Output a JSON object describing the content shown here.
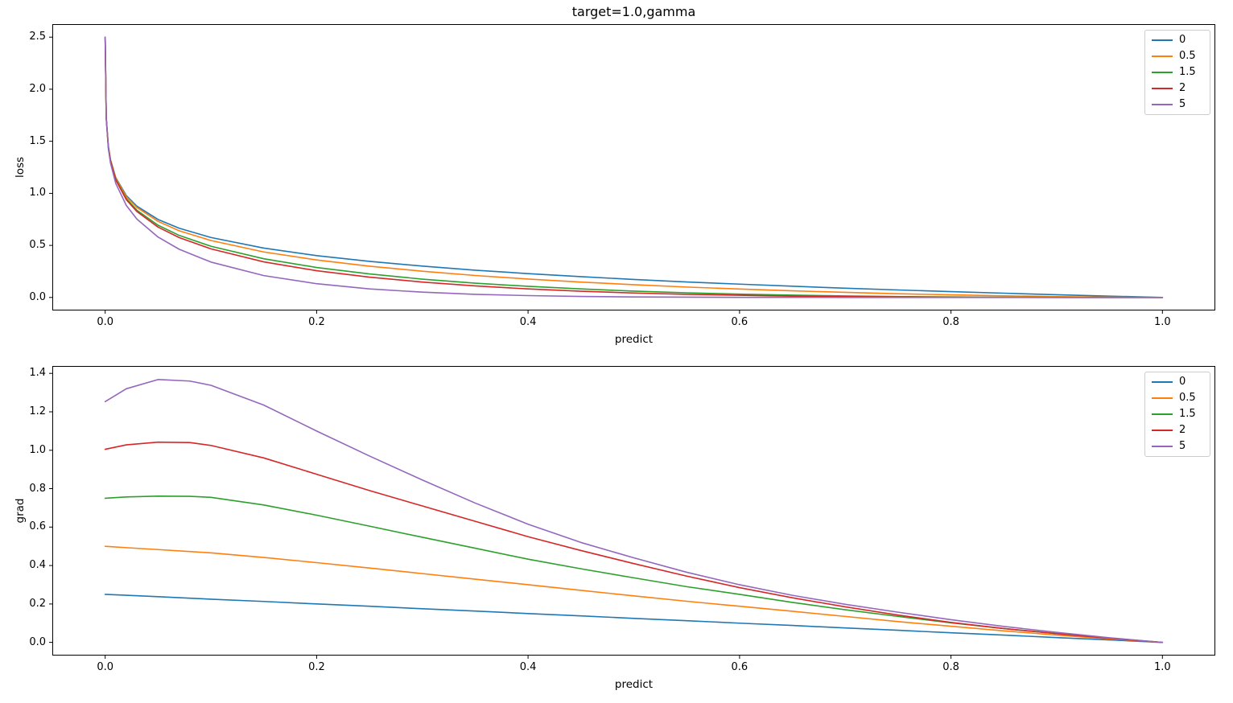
{
  "figure": {
    "title": "target=1.0,gamma",
    "background": "#ffffff"
  },
  "chart_data": [
    {
      "type": "line",
      "title": "target=1.0,gamma",
      "xlabel": "predict",
      "ylabel": "loss",
      "xlim": [
        -0.05,
        1.05
      ],
      "ylim": [
        -0.125,
        2.625
      ],
      "xticks": [
        0,
        0.2,
        0.4,
        0.6,
        0.8,
        1.0
      ],
      "xtick_labels": [
        "0.0",
        "0.2",
        "0.4",
        "0.6",
        "0.8",
        "1.0"
      ],
      "yticks": [
        0,
        0.5,
        1.0,
        1.5,
        2.0,
        2.5
      ],
      "ytick_labels": [
        "0.0",
        "0.5",
        "1.0",
        "1.5",
        "2.0",
        "2.5"
      ],
      "grid": false,
      "legend": {
        "position": "upper right",
        "labels": [
          "0",
          "0.5",
          "1.5",
          "2",
          "5"
        ]
      },
      "x": [
        0,
        0.001,
        0.003,
        0.005,
        0.01,
        0.02,
        0.03,
        0.05,
        0.07,
        0.1,
        0.15,
        0.2,
        0.25,
        0.3,
        0.35,
        0.4,
        0.45,
        0.5,
        0.55,
        0.6,
        0.65,
        0.7,
        0.75,
        0.8,
        0.85,
        0.9,
        0.95,
        1.0
      ],
      "series": [
        {
          "name": "0",
          "color": "#1f77b4",
          "y": [
            2.5,
            1.727,
            1.452,
            1.325,
            1.151,
            0.978,
            0.877,
            0.749,
            0.665,
            0.576,
            0.474,
            0.402,
            0.347,
            0.301,
            0.262,
            0.229,
            0.2,
            0.173,
            0.149,
            0.128,
            0.108,
            0.089,
            0.072,
            0.056,
            0.041,
            0.026,
            0.013,
            0
          ]
        },
        {
          "name": "0.5",
          "color": "#ff7f0e",
          "y": [
            2.5,
            1.726,
            1.45,
            1.322,
            1.145,
            0.968,
            0.864,
            0.731,
            0.641,
            0.547,
            0.437,
            0.36,
            0.3,
            0.252,
            0.211,
            0.177,
            0.148,
            0.123,
            0.1,
            0.081,
            0.064,
            0.049,
            0.036,
            0.025,
            0.016,
            0.008,
            0.003,
            0
          ]
        },
        {
          "name": "1.5",
          "color": "#2ca02c",
          "y": [
            2.5,
            1.724,
            1.445,
            1.315,
            1.134,
            0.949,
            0.838,
            0.694,
            0.596,
            0.492,
            0.372,
            0.288,
            0.226,
            0.176,
            0.137,
            0.107,
            0.082,
            0.061,
            0.045,
            0.032,
            0.022,
            0.015,
            0.009,
            0.005,
            0.002,
            0.001,
            0,
            0
          ]
        },
        {
          "name": "2",
          "color": "#d62728",
          "y": [
            2.5,
            1.724,
            1.443,
            1.312,
            1.128,
            0.939,
            0.825,
            0.676,
            0.575,
            0.467,
            0.342,
            0.257,
            0.195,
            0.148,
            0.111,
            0.082,
            0.06,
            0.043,
            0.03,
            0.021,
            0.013,
            0.008,
            0.005,
            0.002,
            0.001,
            0,
            0,
            0
          ]
        },
        {
          "name": "5",
          "color": "#9467bd",
          "y": [
            2.5,
            1.718,
            1.43,
            1.292,
            1.095,
            0.884,
            0.753,
            0.58,
            0.463,
            0.34,
            0.21,
            0.132,
            0.082,
            0.051,
            0.03,
            0.018,
            0.01,
            0.005,
            0.003,
            0.001,
            0.001,
            0,
            0,
            0,
            0,
            0,
            0,
            0
          ]
        }
      ]
    },
    {
      "type": "line",
      "title": "",
      "xlabel": "predict",
      "ylabel": "grad",
      "xlim": [
        -0.05,
        1.05
      ],
      "ylim": [
        -0.0685,
        1.4385
      ],
      "xticks": [
        0,
        0.2,
        0.4,
        0.6,
        0.8,
        1.0
      ],
      "xtick_labels": [
        "0.0",
        "0.2",
        "0.4",
        "0.6",
        "0.8",
        "1.0"
      ],
      "yticks": [
        0,
        0.2,
        0.4,
        0.6,
        0.8,
        1.0,
        1.2,
        1.4
      ],
      "ytick_labels": [
        "0.0",
        "0.2",
        "0.4",
        "0.6",
        "0.8",
        "1.0",
        "1.2",
        "1.4"
      ],
      "grid": false,
      "legend": {
        "position": "upper right",
        "labels": [
          "0",
          "0.5",
          "1.5",
          "2",
          "5"
        ]
      },
      "x": [
        0,
        0.02,
        0.05,
        0.08,
        0.1,
        0.15,
        0.2,
        0.25,
        0.3,
        0.35,
        0.4,
        0.45,
        0.5,
        0.55,
        0.6,
        0.65,
        0.7,
        0.75,
        0.8,
        0.85,
        0.9,
        0.95,
        1.0
      ],
      "series": [
        {
          "name": "0",
          "color": "#1f77b4",
          "y": [
            0.25,
            0.245,
            0.238,
            0.23,
            0.225,
            0.213,
            0.2,
            0.188,
            0.175,
            0.163,
            0.15,
            0.138,
            0.125,
            0.113,
            0.1,
            0.088,
            0.075,
            0.063,
            0.05,
            0.038,
            0.025,
            0.013,
            0
          ]
        },
        {
          "name": "0.5",
          "color": "#ff7f0e",
          "y": [
            0.5,
            0.493,
            0.483,
            0.473,
            0.466,
            0.442,
            0.415,
            0.387,
            0.358,
            0.329,
            0.3,
            0.271,
            0.242,
            0.214,
            0.188,
            0.162,
            0.135,
            0.108,
            0.084,
            0.06,
            0.038,
            0.018,
            0
          ]
        },
        {
          "name": "1.5",
          "color": "#2ca02c",
          "y": [
            0.75,
            0.757,
            0.761,
            0.76,
            0.755,
            0.715,
            0.662,
            0.605,
            0.547,
            0.49,
            0.433,
            0.383,
            0.336,
            0.29,
            0.25,
            0.208,
            0.17,
            0.135,
            0.102,
            0.072,
            0.046,
            0.022,
            0
          ]
        },
        {
          "name": "2",
          "color": "#d62728",
          "y": [
            1.005,
            1.028,
            1.042,
            1.04,
            1.025,
            0.96,
            0.875,
            0.79,
            0.71,
            0.63,
            0.55,
            0.478,
            0.41,
            0.345,
            0.285,
            0.232,
            0.185,
            0.142,
            0.104,
            0.072,
            0.045,
            0.021,
            0
          ]
        },
        {
          "name": "5",
          "color": "#9467bd",
          "y": [
            1.253,
            1.32,
            1.368,
            1.36,
            1.338,
            1.235,
            1.1,
            0.97,
            0.845,
            0.725,
            0.615,
            0.52,
            0.44,
            0.365,
            0.3,
            0.245,
            0.198,
            0.157,
            0.118,
            0.083,
            0.052,
            0.024,
            0
          ]
        }
      ]
    }
  ]
}
